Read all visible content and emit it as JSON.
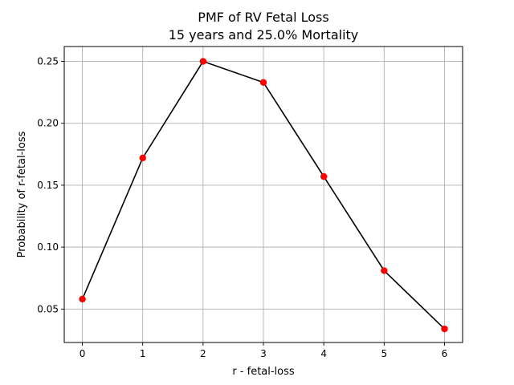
{
  "chart_data": {
    "type": "line",
    "title": "PMF of RV Fetal Loss",
    "subtitle": "15 years and 25.0% Mortality",
    "xlabel": "r - fetal-loss",
    "ylabel": "Probability of r-fetal-loss",
    "xlim": [
      -0.3,
      6.3
    ],
    "ylim": [
      0.023,
      0.262
    ],
    "x_ticks": [
      0,
      1,
      2,
      3,
      4,
      5,
      6
    ],
    "y_ticks": [
      0.05,
      0.1,
      0.15,
      0.2,
      0.25
    ],
    "grid": true,
    "series": [
      {
        "x": [
          0,
          1,
          2,
          3,
          4,
          5,
          6
        ],
        "values": [
          0.058,
          0.172,
          0.25,
          0.233,
          0.157,
          0.081,
          0.034
        ],
        "line_color": "#000000",
        "marker_color": "#ff0000"
      }
    ]
  }
}
